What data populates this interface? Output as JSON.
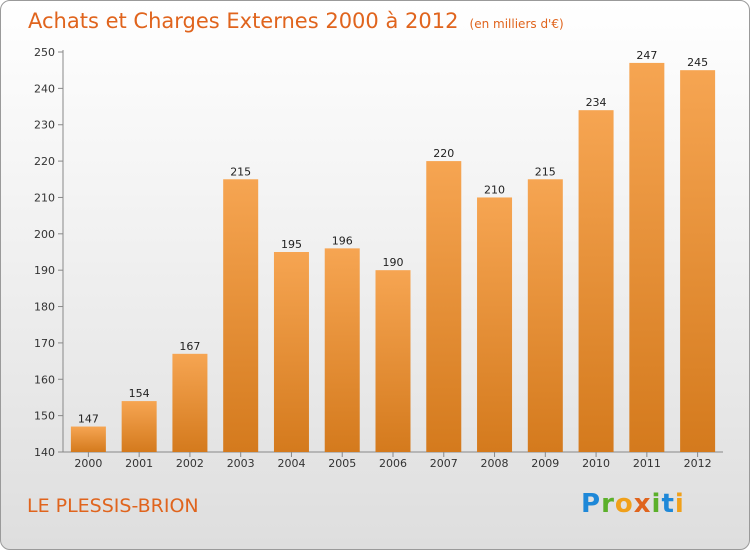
{
  "header": {
    "title": "Achats et Charges Externes 2000 à 2012",
    "unit": "(en milliers d'€)"
  },
  "footer": {
    "commune": "LE PLESSIS-BRION",
    "logo_letters": [
      {
        "ch": "P",
        "color": "#1e88d8"
      },
      {
        "ch": "r",
        "color": "#5bb02a"
      },
      {
        "ch": "o",
        "color": "#f0a01a"
      },
      {
        "ch": "x",
        "color": "#e0641d"
      },
      {
        "ch": "i",
        "color": "#5bb02a"
      },
      {
        "ch": "t",
        "color": "#1e88d8"
      },
      {
        "ch": "i",
        "color": "#f0a01a"
      }
    ]
  },
  "colors": {
    "title": "#e0641d",
    "bar_light": "#f6a552",
    "bar_dark": "#d47a1d"
  },
  "chart_data": {
    "type": "bar",
    "categories": [
      "2000",
      "2001",
      "2002",
      "2003",
      "2004",
      "2005",
      "2006",
      "2007",
      "2008",
      "2009",
      "2010",
      "2011",
      "2012"
    ],
    "values": [
      147,
      154,
      167,
      215,
      195,
      196,
      190,
      220,
      210,
      215,
      234,
      247,
      245
    ],
    "ylim": [
      140,
      250
    ],
    "yticks": [
      140,
      150,
      160,
      170,
      180,
      190,
      200,
      210,
      220,
      230,
      240,
      250
    ],
    "grid": false,
    "data_labels": true
  }
}
